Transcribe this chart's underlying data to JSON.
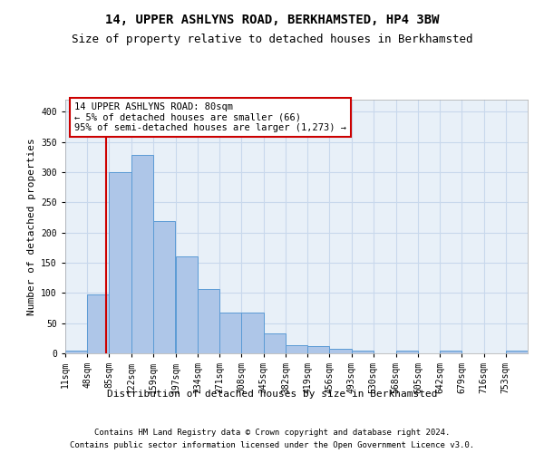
{
  "title": "14, UPPER ASHLYNS ROAD, BERKHAMSTED, HP4 3BW",
  "subtitle": "Size of property relative to detached houses in Berkhamsted",
  "xlabel": "Distribution of detached houses by size in Berkhamsted",
  "ylabel": "Number of detached properties",
  "footnote1": "Contains HM Land Registry data © Crown copyright and database right 2024.",
  "footnote2": "Contains public sector information licensed under the Open Government Licence v3.0.",
  "annotation_title": "14 UPPER ASHLYNS ROAD: 80sqm",
  "annotation_line1": "← 5% of detached houses are smaller (66)",
  "annotation_line2": "95% of semi-detached houses are larger (1,273) →",
  "bar_values": [
    4,
    98,
    300,
    328,
    219,
    160,
    106,
    67,
    67,
    33,
    13,
    12,
    7,
    5,
    0,
    4,
    0,
    4,
    0,
    0,
    4
  ],
  "bin_edges": [
    11,
    48,
    85,
    122,
    159,
    197,
    234,
    271,
    308,
    345,
    382,
    419,
    456,
    493,
    530,
    568,
    605,
    642,
    679,
    716,
    753,
    790
  ],
  "tick_labels": [
    "11sqm",
    "48sqm",
    "85sqm",
    "122sqm",
    "159sqm",
    "197sqm",
    "234sqm",
    "271sqm",
    "308sqm",
    "345sqm",
    "382sqm",
    "419sqm",
    "456sqm",
    "493sqm",
    "530sqm",
    "568sqm",
    "605sqm",
    "642sqm",
    "679sqm",
    "716sqm",
    "753sqm"
  ],
  "property_size": 80,
  "bar_color": "#aec6e8",
  "bar_edge_color": "#5b9bd5",
  "vline_color": "#cc0000",
  "annotation_box_color": "#cc0000",
  "background_color": "#ffffff",
  "plot_bg_color": "#e8f0f8",
  "grid_color": "#c8d8ec",
  "ylim": [
    0,
    420
  ],
  "title_fontsize": 10,
  "subtitle_fontsize": 9,
  "axis_label_fontsize": 8,
  "tick_fontsize": 7,
  "footnote_fontsize": 6.5,
  "annotation_fontsize": 7.5
}
